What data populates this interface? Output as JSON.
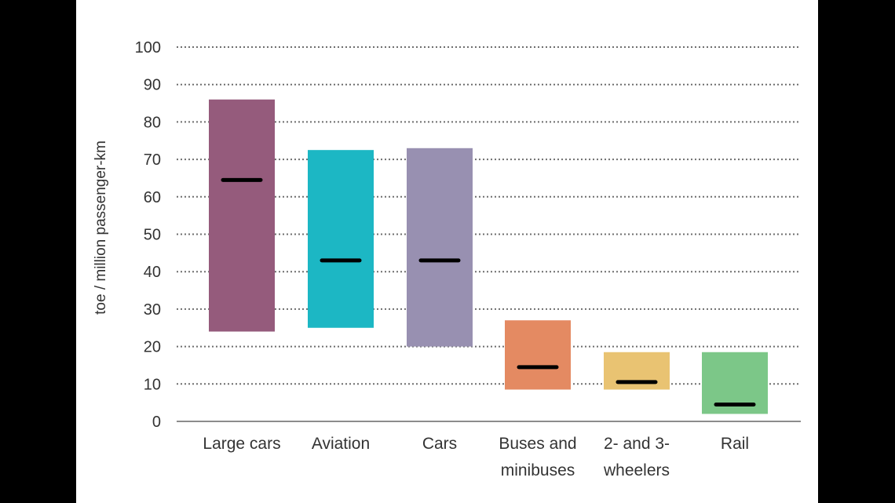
{
  "chart_data": {
    "type": "bar",
    "subtype": "floating-range-with-marker",
    "categories": [
      [
        "Large cars"
      ],
      [
        "Aviation"
      ],
      [
        "Cars"
      ],
      [
        "Buses and",
        "minibuses"
      ],
      [
        "2- and 3-",
        "wheelers"
      ],
      [
        "Rail"
      ]
    ],
    "ranges": [
      {
        "low": 24,
        "high": 86,
        "marker": 64.5
      },
      {
        "low": 25,
        "high": 72.5,
        "marker": 43
      },
      {
        "low": 20,
        "high": 73,
        "marker": 43
      },
      {
        "low": 8.5,
        "high": 27,
        "marker": 14.5
      },
      {
        "low": 8.5,
        "high": 18.5,
        "marker": 10.5
      },
      {
        "low": 2,
        "high": 18.5,
        "marker": 4.5
      }
    ],
    "colors": [
      "#955b7c",
      "#1cb7c4",
      "#9890b1",
      "#e48a62",
      "#e9c372",
      "#7cc788"
    ],
    "marker_color": "#000000",
    "ylabel": "toe / million passenger-km",
    "xlabel": "",
    "title": "",
    "ylim": [
      0,
      100
    ],
    "yticks": [
      "0",
      "10",
      "20",
      "30",
      "40",
      "50",
      "60",
      "70",
      "80",
      "90",
      "100"
    ],
    "grid": "horizontal dotted",
    "legend": "none"
  }
}
